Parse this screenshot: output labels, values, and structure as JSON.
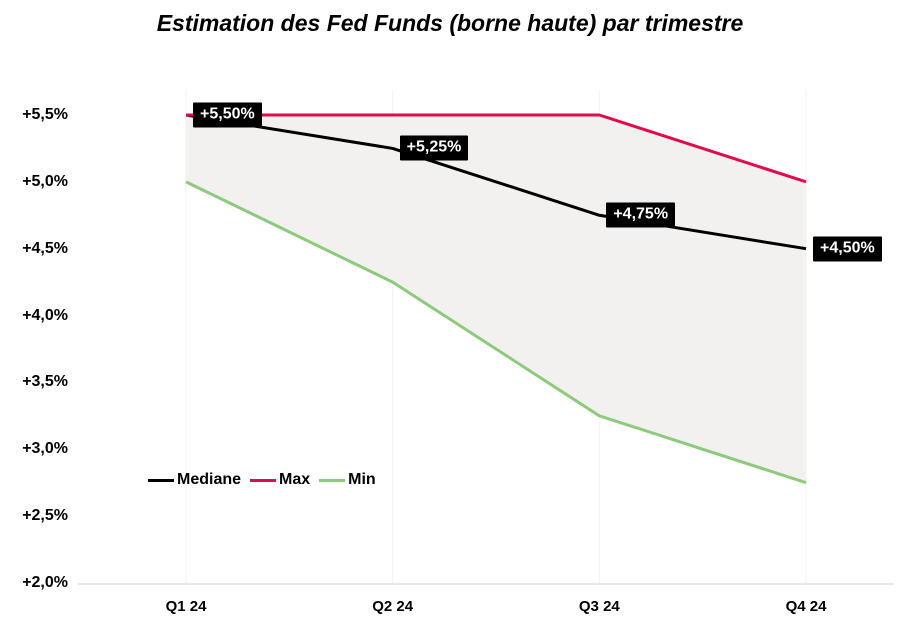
{
  "title": "Estimation des Fed Funds (borne haute) par trimestre",
  "colors": {
    "median": "#000000",
    "max": "#e00a4c",
    "min": "#8ec97d",
    "band_fill": "#f2f1ef",
    "axis_line": "#e8e8e8",
    "gridline": "#f2f2f2",
    "label_box_bg": "#000000",
    "label_box_text": "#ffffff"
  },
  "chart_data": {
    "type": "line",
    "categories": [
      "Q1 24",
      "Q2 24",
      "Q3 24",
      "Q4 24"
    ],
    "series": [
      {
        "name": "Mediane",
        "color": "#000000",
        "values": [
          5.5,
          5.25,
          4.75,
          4.5
        ],
        "point_labels": [
          "+5,50%",
          "+5,25%",
          "+4,75%",
          "+4,50%"
        ]
      },
      {
        "name": "Max",
        "color": "#e00a4c",
        "values": [
          5.5,
          5.5,
          5.5,
          5.0
        ]
      },
      {
        "name": "Min",
        "color": "#8ec97d",
        "values": [
          5.0,
          4.25,
          3.25,
          2.75
        ]
      }
    ],
    "band_between": [
      "Max",
      "Min"
    ],
    "band_color": "#f2f1ef",
    "title": "Estimation des Fed Funds (borne haute) par trimestre",
    "xlabel": "",
    "ylabel": "",
    "ylim": [
      2.0,
      5.5
    ],
    "ytick_values": [
      5.5,
      5.0,
      4.5,
      4.0,
      3.5,
      3.0,
      2.5,
      2.0
    ],
    "ytick_labels": [
      "+5,5%",
      "+5,0%",
      "+4,5%",
      "+4,0%",
      "+3,5%",
      "+3,0%",
      "+2,5%",
      "+2,0%"
    ],
    "grid": "vertical-faint, no horizontal gridlines",
    "legend_position": "inside-left-middle",
    "legend": [
      {
        "label": "Mediane",
        "color": "#000000"
      },
      {
        "label": "Max",
        "color": "#e00a4c"
      },
      {
        "label": "Min",
        "color": "#8ec97d"
      }
    ]
  }
}
